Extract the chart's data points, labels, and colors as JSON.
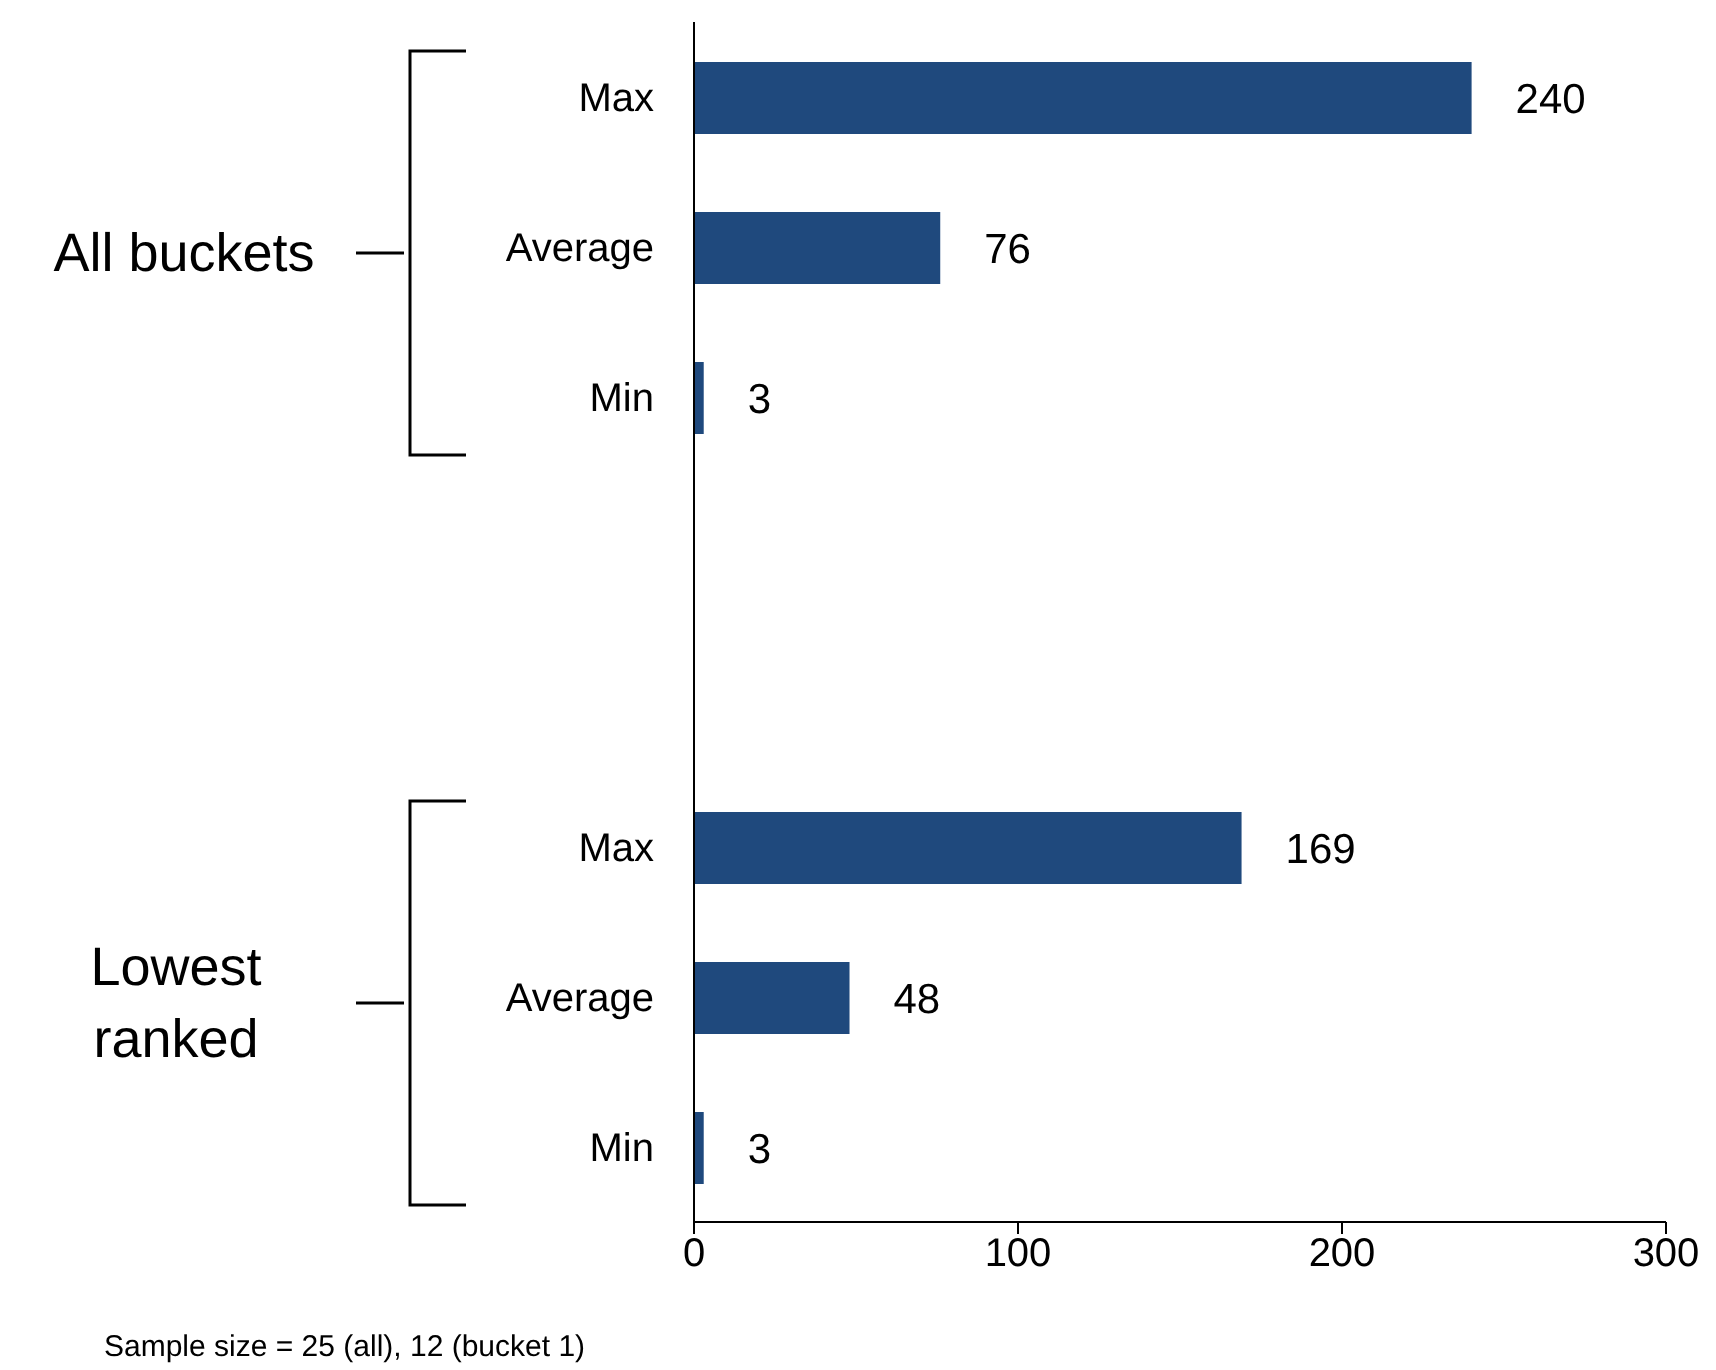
{
  "chart_data": {
    "type": "bar",
    "orientation": "horizontal",
    "categories": [
      "Max",
      "Average",
      "Min",
      null,
      null,
      "Max",
      "Average",
      "Min"
    ],
    "values": [
      240,
      76,
      3,
      null,
      null,
      169,
      48,
      3
    ],
    "color": "#1f497d",
    "xlim": [
      0,
      300
    ],
    "xticks": [
      0,
      100,
      200,
      300
    ],
    "data_labels": true,
    "grid": false,
    "legend": false,
    "annotations": [
      "All buckets",
      "Lowest\nranked",
      "Sample size = 25 (all), 12 (bucket 1)"
    ]
  }
}
